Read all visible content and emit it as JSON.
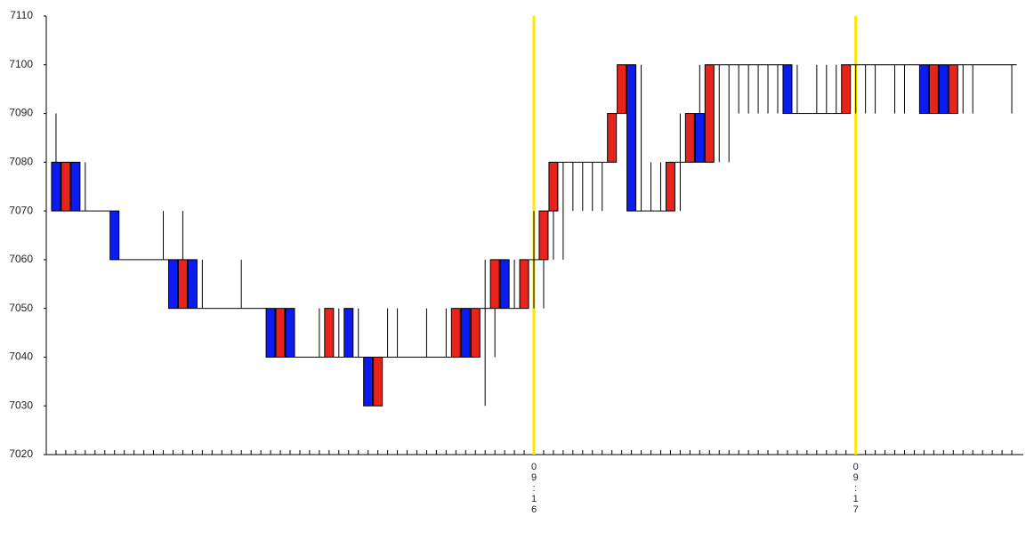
{
  "chart_data": {
    "type": "candlestick",
    "categories": [
      null,
      null,
      null,
      null,
      null,
      null,
      null,
      null,
      null,
      null,
      null,
      null,
      null,
      null,
      null,
      null,
      null,
      null,
      null,
      null,
      null,
      null,
      null,
      null,
      null,
      null,
      null,
      null,
      null,
      null,
      null,
      null,
      null,
      null,
      null,
      null,
      null,
      null,
      null,
      null,
      null,
      null,
      null,
      null,
      null,
      null,
      null,
      null,
      null,
      "09:16",
      null,
      null,
      null,
      null,
      null,
      null,
      null,
      null,
      null,
      null,
      null,
      null,
      null,
      null,
      null,
      null,
      null,
      null,
      null,
      null,
      null,
      null,
      null,
      null,
      null,
      null,
      null,
      null,
      null,
      null,
      null,
      null,
      "09:17",
      null,
      null,
      null,
      null,
      null,
      null,
      null,
      null,
      null,
      null,
      null,
      null,
      null,
      null,
      null,
      null
    ],
    "open": [
      7080,
      7070,
      7080,
      7070,
      7070,
      7070,
      7070,
      7060,
      7060,
      7060,
      7060,
      7060,
      7060,
      7050,
      7060,
      7050,
      7050,
      7050,
      7050,
      7050,
      7050,
      7050,
      7050,
      7040,
      7050,
      7040,
      7040,
      7040,
      7040,
      7040,
      7050,
      7040,
      7040,
      7030,
      7040,
      7040,
      7040,
      7040,
      7040,
      7040,
      7040,
      7040,
      7050,
      7040,
      7050,
      7050,
      7060,
      7050,
      7050,
      7060,
      7060,
      7070,
      7080,
      7080,
      7080,
      7080,
      7080,
      7080,
      7090,
      7100,
      7070,
      7070,
      7070,
      7070,
      7080,
      7080,
      7090,
      7080,
      7100,
      7100,
      7100,
      7100,
      7100,
      7100,
      7100,
      7100,
      7090,
      7090,
      7090,
      7090,
      7090,
      7090,
      7100,
      7100,
      7100,
      7100,
      7100,
      7100,
      7100,
      7100,
      7090,
      7100,
      7090,
      7100,
      7100,
      7100,
      7100,
      7100,
      7100
    ],
    "high": [
      7090,
      7080,
      7080,
      7080,
      7070,
      7070,
      7070,
      7060,
      7060,
      7060,
      7060,
      7070,
      7060,
      7070,
      7060,
      7060,
      7050,
      7050,
      7050,
      7060,
      7050,
      7050,
      7050,
      7050,
      7050,
      7040,
      7040,
      7050,
      7050,
      7050,
      7050,
      7050,
      7040,
      7040,
      7050,
      7050,
      7040,
      7040,
      7050,
      7040,
      7050,
      7050,
      7050,
      7050,
      7060,
      7060,
      7060,
      7060,
      7060,
      7070,
      7070,
      7080,
      7080,
      7080,
      7080,
      7080,
      7080,
      7090,
      7100,
      7100,
      7100,
      7080,
      7080,
      7080,
      7090,
      7090,
      7100,
      7100,
      7100,
      7100,
      7100,
      7100,
      7100,
      7100,
      7100,
      7100,
      7100,
      7090,
      7100,
      7100,
      7100,
      7100,
      7100,
      7100,
      7100,
      7100,
      7100,
      7100,
      7100,
      7100,
      7100,
      7100,
      7100,
      7100,
      7100,
      7100,
      7100,
      7100,
      7100
    ],
    "low": [
      7070,
      7070,
      7070,
      7070,
      7070,
      7070,
      7060,
      7060,
      7060,
      7060,
      7060,
      7060,
      7050,
      7050,
      7050,
      7050,
      7050,
      7050,
      7050,
      7050,
      7050,
      7050,
      7040,
      7040,
      7040,
      7040,
      7040,
      7040,
      7040,
      7040,
      7040,
      7040,
      7030,
      7030,
      7040,
      7040,
      7040,
      7040,
      7040,
      7040,
      7040,
      7040,
      7040,
      7040,
      7030,
      7040,
      7050,
      7050,
      7050,
      7050,
      7050,
      7060,
      7060,
      7070,
      7070,
      7070,
      7070,
      7080,
      7090,
      7070,
      7070,
      7070,
      7070,
      7070,
      7070,
      7080,
      7080,
      7080,
      7080,
      7080,
      7090,
      7090,
      7090,
      7090,
      7090,
      7090,
      7090,
      7090,
      7090,
      7090,
      7090,
      7090,
      7090,
      7090,
      7090,
      7100,
      7090,
      7090,
      7100,
      7090,
      7090,
      7090,
      7090,
      7090,
      7090,
      7100,
      7100,
      7100,
      7090
    ],
    "close": [
      7070,
      7080,
      7070,
      7070,
      7070,
      7070,
      7060,
      7060,
      7060,
      7060,
      7060,
      7060,
      7050,
      7060,
      7050,
      7050,
      7050,
      7050,
      7050,
      7050,
      7050,
      7050,
      7040,
      7050,
      7040,
      7040,
      7040,
      7040,
      7050,
      7040,
      7040,
      7040,
      7030,
      7040,
      7040,
      7040,
      7040,
      7040,
      7040,
      7040,
      7040,
      7050,
      7040,
      7050,
      7050,
      7060,
      7050,
      7050,
      7060,
      7060,
      7070,
      7080,
      7080,
      7080,
      7080,
      7080,
      7080,
      7090,
      7100,
      7070,
      7070,
      7070,
      7070,
      7080,
      7080,
      7090,
      7080,
      7100,
      7100,
      7100,
      7100,
      7100,
      7100,
      7100,
      7100,
      7090,
      7090,
      7090,
      7090,
      7090,
      7090,
      7100,
      7100,
      7100,
      7100,
      7100,
      7100,
      7100,
      7100,
      7090,
      7100,
      7090,
      7100,
      7100,
      7100,
      7100,
      7100,
      7100,
      7100
    ],
    "up_color": "#e8231b",
    "down_color": "#0c1cf0",
    "marker_color": "#ffe600",
    "ylim": [
      7020,
      7110
    ],
    "yticks": [
      7020,
      7030,
      7040,
      7050,
      7060,
      7070,
      7080,
      7090,
      7100,
      7110
    ]
  }
}
